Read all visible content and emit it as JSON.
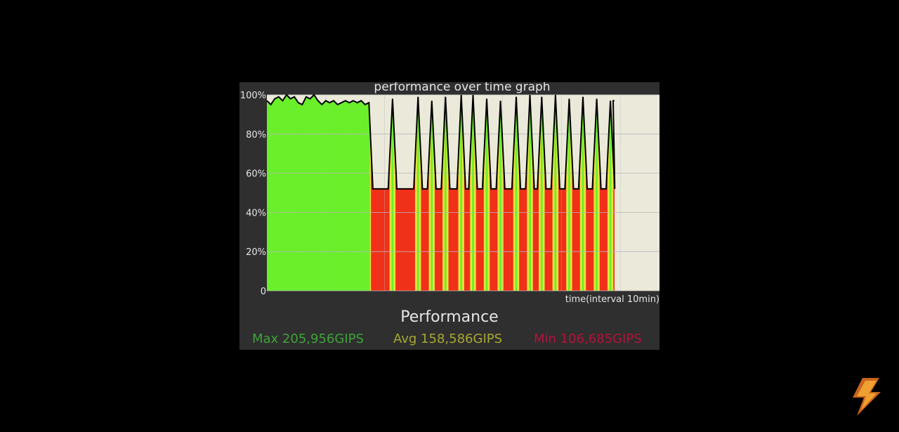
{
  "chart_data": {
    "type": "area",
    "title": "performance over time graph",
    "xlabel": "time(interval 10min)",
    "ylabel": "",
    "ylim": [
      0,
      100
    ],
    "yticks": [
      {
        "value": 0,
        "label": "0"
      },
      {
        "value": 20,
        "label": "20%"
      },
      {
        "value": 40,
        "label": "40%"
      },
      {
        "value": 60,
        "label": "60%"
      },
      {
        "value": 80,
        "label": "80%"
      },
      {
        "value": 100,
        "label": "100%"
      }
    ],
    "grid": true,
    "xlim": [
      0,
      100
    ],
    "steady_phase": {
      "x": [
        0,
        1,
        2,
        3,
        4,
        5,
        6,
        7,
        8,
        9,
        10,
        11,
        12,
        13,
        14,
        15,
        16,
        17,
        18,
        19,
        20,
        21,
        22,
        23,
        24,
        25,
        26,
        27
      ],
      "y": [
        97,
        95,
        98,
        99,
        97,
        100,
        98,
        99,
        96,
        95,
        99,
        98,
        100,
        97,
        95,
        97,
        96,
        97,
        95,
        96,
        97,
        96,
        97,
        96,
        97,
        95,
        96,
        95
      ]
    },
    "throttle_phase": {
      "x_start": 27,
      "x_end": 88.5,
      "baseline": 52,
      "peak_x": [
        32,
        38.5,
        42,
        45.5,
        49.5,
        52.5,
        56,
        59.5,
        63.5,
        67,
        70,
        73.5,
        77,
        80.5,
        84,
        87.5
      ],
      "peak_y": [
        98,
        99,
        97,
        99,
        100,
        100,
        98,
        97,
        99,
        100,
        99,
        100,
        98,
        99,
        98,
        97
      ]
    },
    "data_end_x": 88.5,
    "colors": {
      "high": "#6aef2a",
      "mid": "#e8e43a",
      "low": "#f03018",
      "line": "#000000",
      "plot_bg": "#ebe9da",
      "grid": "#b8b8b8"
    }
  },
  "performance": {
    "title": "Performance",
    "max": {
      "label": "Max 205,956GIPS",
      "color": "#3fa33a"
    },
    "avg": {
      "label": "Avg 158,586GIPS",
      "color": "#a7a734"
    },
    "min": {
      "label": "Min 106,685GIPS",
      "color": "#b0143c"
    }
  },
  "logo": {
    "icon": "lightning-bolt-icon"
  }
}
